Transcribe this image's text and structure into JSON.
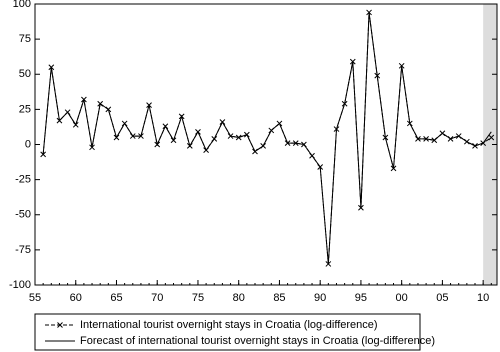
{
  "chart_data": {
    "type": "line",
    "x": [
      1956,
      1957,
      1958,
      1959,
      1960,
      1961,
      1962,
      1963,
      1964,
      1965,
      1966,
      1967,
      1968,
      1969,
      1970,
      1971,
      1972,
      1973,
      1974,
      1975,
      1976,
      1977,
      1978,
      1979,
      1980,
      1981,
      1982,
      1983,
      1984,
      1985,
      1986,
      1987,
      1988,
      1989,
      1990,
      1991,
      1992,
      1993,
      1994,
      1995,
      1996,
      1997,
      1998,
      1999,
      2000,
      2001,
      2002,
      2003,
      2004,
      2005,
      2006,
      2007,
      2008,
      2009,
      2010,
      2011
    ],
    "series": [
      {
        "name": "International tourist overnight stays in Croatia (log-difference)",
        "color": "#000000",
        "line_style": "dashed",
        "marker": "x",
        "values": [
          -7,
          55,
          17,
          23,
          14,
          32,
          -2,
          29,
          25,
          5,
          15,
          6,
          6,
          28,
          0,
          13,
          3,
          20,
          -1,
          9,
          -4,
          4,
          16,
          6,
          5,
          7,
          -5,
          -1,
          10,
          15,
          1,
          1,
          0,
          -8,
          -16,
          -85,
          11,
          29,
          59,
          -45,
          94,
          49,
          5,
          -17,
          56,
          15,
          4,
          4,
          3,
          8,
          4,
          6,
          2,
          -1,
          1,
          5
        ]
      },
      {
        "name": "Forecast of international tourist overnight stays in Croatia (log-difference)",
        "color": "#000000",
        "line_style": "solid",
        "values": [
          -7,
          55,
          17,
          23,
          14,
          32,
          -2,
          29,
          25,
          5,
          15,
          6,
          6,
          28,
          0,
          13,
          3,
          20,
          -1,
          9,
          -4,
          4,
          16,
          6,
          5,
          7,
          -5,
          -1,
          10,
          15,
          1,
          1,
          0,
          -8,
          -16,
          -85,
          11,
          29,
          59,
          -45,
          94,
          49,
          5,
          -17,
          56,
          15,
          4,
          4,
          3,
          8,
          4,
          6,
          2,
          -1,
          1,
          9
        ]
      }
    ],
    "xlim": [
      1955,
      2011.7
    ],
    "xticks": [
      {
        "value": 1955,
        "label": "55"
      },
      {
        "value": 1960,
        "label": "60"
      },
      {
        "value": 1965,
        "label": "65"
      },
      {
        "value": 1970,
        "label": "70"
      },
      {
        "value": 1975,
        "label": "75"
      },
      {
        "value": 1980,
        "label": "80"
      },
      {
        "value": 1985,
        "label": "85"
      },
      {
        "value": 1990,
        "label": "90"
      },
      {
        "value": 1995,
        "label": "95"
      },
      {
        "value": 2000,
        "label": "00"
      },
      {
        "value": 2005,
        "label": "05"
      },
      {
        "value": 2010,
        "label": "10"
      }
    ],
    "ylim": [
      -100,
      100
    ],
    "yticks": [
      100,
      75,
      50,
      25,
      0,
      -25,
      -50,
      -75,
      -100
    ],
    "shade_x": [
      2010,
      2011.7
    ],
    "shade_color": "#dddddd"
  }
}
